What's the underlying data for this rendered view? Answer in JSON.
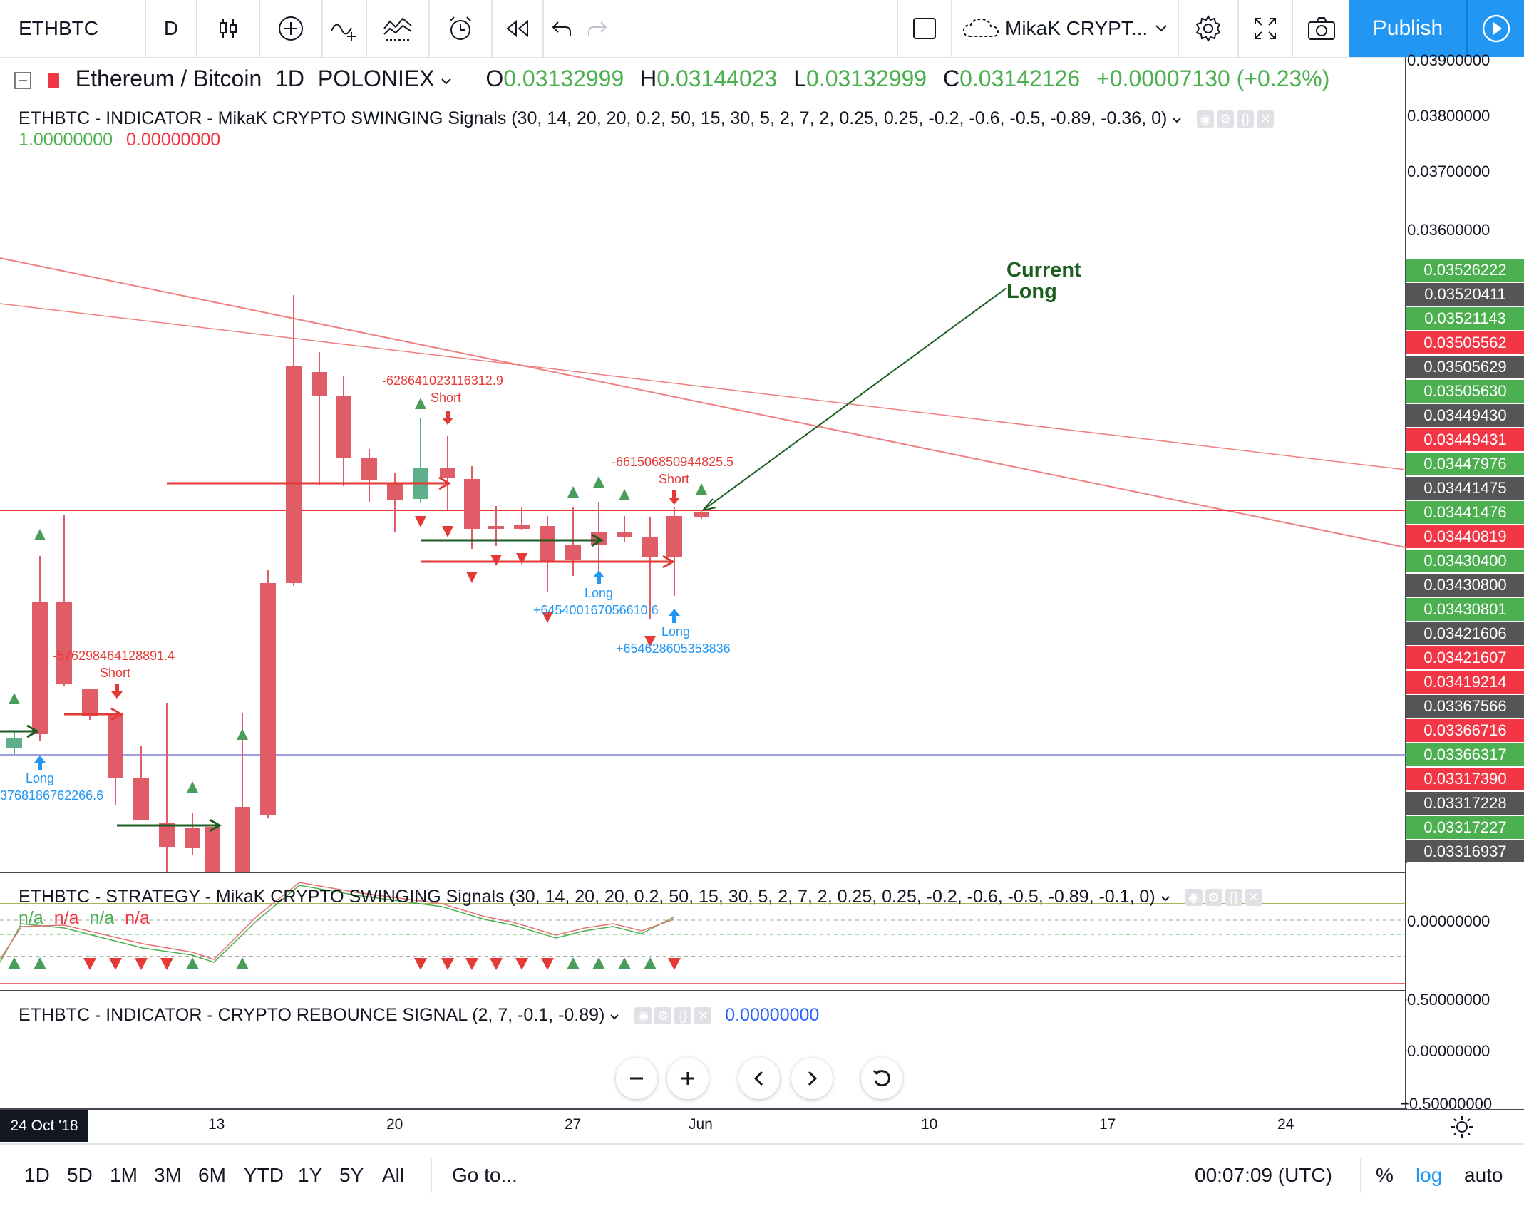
{
  "toolbar": {
    "symbol": "ETHBTC",
    "interval": "D",
    "layout_name": "MikaK CRYPT...",
    "publish_label": "Publish"
  },
  "main_legend": {
    "pair": "Ethereum / Bitcoin",
    "interval": "1D",
    "exchange": "POLONIEX",
    "o_label": "O",
    "o_value": "0.03132999",
    "h_label": "H",
    "h_value": "0.03144023",
    "l_label": "L",
    "l_value": "0.03132999",
    "c_label": "C",
    "c_value": "0.03142126",
    "change": "+0.00007130 (+0.23%)"
  },
  "indicator_legend": {
    "title": "ETHBTC - INDICATOR - MikaK CRYPTO SWINGING Signals (30, 14, 20, 20, 0.2, 50, 15, 30, 5, 2, 7, 2, 0.25, 0.25, -0.2, -0.6, -0.5, -0.89, -0.36, 0)",
    "value1": "1.00000000",
    "value2": "0.00000000"
  },
  "strategy_legend": {
    "title": "ETHBTC - STRATEGY - MikaK CRYPTO SWINGING Signals (30, 14, 20, 20, 0.2, 50, 15, 30, 5, 2, 7, 2, 0.25, 0.25, -0.2, -0.6, -0.5, -0.89, -0.1, 0)",
    "values": [
      "n/a",
      "n/a",
      "n/a",
      "n/a"
    ]
  },
  "rebounce_legend": {
    "title": "ETHBTC - INDICATOR - CRYPTO REBOUNCE SIGNAL (2, 7, -0.1, -0.89)",
    "value": "0.00000000"
  },
  "price_scale": {
    "ticks": [
      "0.03900000",
      "0.03800000",
      "0.03700000",
      "0.03600000"
    ],
    "labels": [
      {
        "text": "0.03526222",
        "color": "#4caf50"
      },
      {
        "text": "0.03520411",
        "color": "#555555"
      },
      {
        "text": "0.03521143",
        "color": "#4caf50"
      },
      {
        "text": "0.03505562",
        "color": "#f23645"
      },
      {
        "text": "0.03505629",
        "color": "#555555"
      },
      {
        "text": "0.03505630",
        "color": "#4caf50"
      },
      {
        "text": "0.03449430",
        "color": "#555555"
      },
      {
        "text": "0.03449431",
        "color": "#f23645"
      },
      {
        "text": "0.03447976",
        "color": "#4caf50"
      },
      {
        "text": "0.03441475",
        "color": "#555555"
      },
      {
        "text": "0.03441476",
        "color": "#4caf50"
      },
      {
        "text": "0.03440819",
        "color": "#f23645"
      },
      {
        "text": "0.03430400",
        "color": "#4caf50"
      },
      {
        "text": "0.03430800",
        "color": "#555555"
      },
      {
        "text": "0.03430801",
        "color": "#4caf50"
      },
      {
        "text": "0.03421606",
        "color": "#555555"
      },
      {
        "text": "0.03421607",
        "color": "#f23645"
      },
      {
        "text": "0.03419214",
        "color": "#f23645"
      },
      {
        "text": "0.03367566",
        "color": "#555555"
      },
      {
        "text": "0.03366716",
        "color": "#f23645"
      },
      {
        "text": "0.03366317",
        "color": "#4caf50"
      },
      {
        "text": "0.03317390",
        "color": "#f23645"
      },
      {
        "text": "0.03317228",
        "color": "#555555"
      },
      {
        "text": "0.03317227",
        "color": "#4caf50"
      },
      {
        "text": "0.03316937",
        "color": "#555555"
      }
    ],
    "strategy_tick": "0.00000000",
    "rebounce_ticks": [
      "0.50000000",
      "0.00000000",
      "−0.50000000"
    ]
  },
  "annotations": {
    "current_long_line1": "Current",
    "current_long_line2": "Long",
    "short1_value": "-576298464128891.4",
    "short1_label": "Short",
    "long1_label": "Long",
    "long1_value": "3768186762266.6",
    "short2_value": "-628641023116312.9",
    "short2_label": "Short",
    "short3_value": "-661506850944825.5",
    "short3_label": "Short",
    "long2_label": "Long",
    "long2_value": "+645400167056610.6",
    "long3_label": "Long",
    "long3_value": "+654628605353836"
  },
  "time_axis": {
    "first_date": "24 Oct '18",
    "labels": [
      "13",
      "20",
      "27",
      "Jun",
      "10",
      "17",
      "24"
    ]
  },
  "bottom_bar": {
    "ranges": [
      "1D",
      "5D",
      "1M",
      "3M",
      "6M",
      "YTD",
      "1Y",
      "5Y",
      "All"
    ],
    "goto_label": "Go to...",
    "clock": "00:07:09 (UTC)",
    "percent_label": "%",
    "log_label": "log",
    "auto_label": "auto"
  },
  "colors": {
    "bull": "#5db089",
    "bear": "#e05c66",
    "accent": "#2196f3"
  }
}
